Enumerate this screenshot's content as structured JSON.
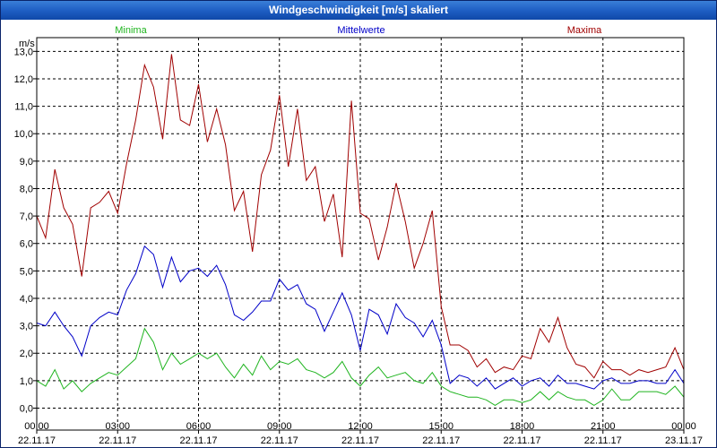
{
  "window": {
    "title": "Windgeschwindigkeit [m/s] skaliert"
  },
  "legend": {
    "min": "Minima",
    "mean": "Mittelwerte",
    "max": "Maxima"
  },
  "colors": {
    "min": "#1fb41f",
    "mean": "#0000c8",
    "max": "#a00000",
    "grid": "#000000",
    "frame": "#0a246a"
  },
  "chart_data": {
    "type": "line",
    "title": "Windgeschwindigkeit [m/s] skaliert",
    "ylabel": "m/s",
    "ylim": [
      -0.8,
      13.5
    ],
    "xlim": [
      0,
      24
    ],
    "yticks": [
      "0,0",
      "1,0",
      "2,0",
      "3,0",
      "4,0",
      "5,0",
      "6,0",
      "7,0",
      "8,0",
      "9,0",
      "10,0",
      "11,0",
      "12,0",
      "13,0"
    ],
    "xticks": [
      {
        "time": "00:00",
        "date": "22.11.17"
      },
      {
        "time": "03:00",
        "date": "22.11.17"
      },
      {
        "time": "06:00",
        "date": "22.11.17"
      },
      {
        "time": "09:00",
        "date": "22.11.17"
      },
      {
        "time": "12:00",
        "date": "22.11.17"
      },
      {
        "time": "15:00",
        "date": "22.11.17"
      },
      {
        "time": "18:00",
        "date": "22.11.17"
      },
      {
        "time": "21:00",
        "date": "22.11.17"
      },
      {
        "time": "00:00",
        "date": "23.11.17"
      }
    ],
    "x": [
      0,
      0.33,
      0.67,
      1,
      1.33,
      1.67,
      2,
      2.33,
      2.67,
      3,
      3.33,
      3.67,
      4,
      4.33,
      4.67,
      5,
      5.33,
      5.67,
      6,
      6.33,
      6.67,
      7,
      7.33,
      7.67,
      8,
      8.33,
      8.67,
      9,
      9.33,
      9.67,
      10,
      10.33,
      10.67,
      11,
      11.33,
      11.67,
      12,
      12.33,
      12.67,
      13,
      13.33,
      13.67,
      14,
      14.33,
      14.67,
      15,
      15.33,
      15.67,
      16,
      16.33,
      16.67,
      17,
      17.33,
      17.67,
      18,
      18.33,
      18.67,
      19,
      19.33,
      19.67,
      20,
      20.33,
      20.67,
      21,
      21.33,
      21.67,
      22,
      22.33,
      22.67,
      23,
      23.33,
      23.67,
      24
    ],
    "series": [
      {
        "name": "Maxima",
        "values": [
          7.0,
          6.2,
          8.7,
          7.3,
          6.7,
          4.8,
          7.3,
          7.5,
          7.9,
          7.1,
          8.9,
          10.5,
          12.5,
          11.7,
          9.8,
          12.9,
          10.5,
          10.3,
          11.8,
          9.7,
          10.9,
          9.6,
          7.2,
          7.9,
          5.7,
          8.5,
          9.4,
          11.4,
          8.8,
          10.9,
          8.3,
          8.8,
          6.8,
          7.8,
          5.5,
          11.2,
          7.1,
          6.9,
          5.4,
          6.6,
          8.2,
          6.8,
          5.1,
          6.0,
          7.2,
          3.7,
          2.3,
          2.3,
          2.1,
          1.5,
          1.8,
          1.3,
          1.5,
          1.4,
          1.9,
          1.8,
          2.9,
          2.4,
          3.3,
          2.2,
          1.6,
          1.5,
          1.1,
          1.7,
          1.4,
          1.4,
          1.2,
          1.4,
          1.3,
          1.4,
          1.5,
          2.2,
          1.4
        ]
      },
      {
        "name": "Mittelwerte",
        "values": [
          3.1,
          3.0,
          3.5,
          3.0,
          2.6,
          1.9,
          3.0,
          3.3,
          3.5,
          3.4,
          4.3,
          4.9,
          5.9,
          5.6,
          4.4,
          5.5,
          4.6,
          5.0,
          5.1,
          4.8,
          5.2,
          4.5,
          3.4,
          3.2,
          3.5,
          3.9,
          3.9,
          4.7,
          4.3,
          4.5,
          3.8,
          3.6,
          2.8,
          3.5,
          4.2,
          3.4,
          2.1,
          3.6,
          3.4,
          2.7,
          3.8,
          3.3,
          3.1,
          2.6,
          3.2,
          2.3,
          0.9,
          1.2,
          1.1,
          0.8,
          1.1,
          0.7,
          0.9,
          1.1,
          0.8,
          1.0,
          1.1,
          0.8,
          1.2,
          0.9,
          0.9,
          0.8,
          0.7,
          1.0,
          1.1,
          0.9,
          0.9,
          1.0,
          1.0,
          0.9,
          0.9,
          1.4,
          0.9
        ]
      },
      {
        "name": "Minima",
        "values": [
          1.0,
          0.8,
          1.4,
          0.7,
          1.0,
          0.6,
          0.9,
          1.1,
          1.3,
          1.2,
          1.5,
          1.8,
          2.9,
          2.4,
          1.4,
          2.0,
          1.6,
          1.8,
          2.0,
          1.8,
          2.0,
          1.5,
          1.1,
          1.6,
          1.2,
          1.9,
          1.4,
          1.7,
          1.6,
          1.8,
          1.4,
          1.3,
          1.1,
          1.3,
          1.7,
          1.1,
          0.8,
          1.2,
          1.5,
          1.1,
          1.2,
          1.3,
          1.0,
          0.9,
          1.3,
          0.8,
          0.6,
          0.5,
          0.4,
          0.4,
          0.3,
          0.1,
          0.3,
          0.3,
          0.2,
          0.3,
          0.6,
          0.3,
          0.6,
          0.4,
          0.3,
          0.3,
          0.1,
          0.3,
          0.7,
          0.3,
          0.3,
          0.6,
          0.6,
          0.6,
          0.5,
          0.8,
          0.4
        ]
      }
    ]
  }
}
